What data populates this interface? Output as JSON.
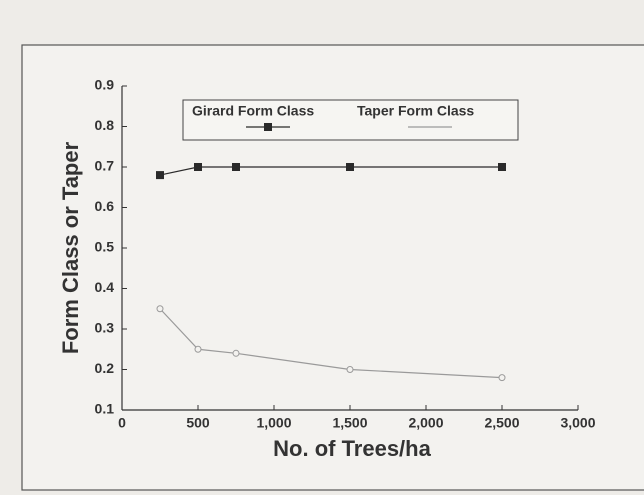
{
  "chart_data": {
    "type": "line",
    "xlabel": "No. of Trees/ha",
    "ylabel": "Form Class or Taper",
    "x": [
      250,
      500,
      750,
      1500,
      2500
    ],
    "series": [
      {
        "name": "Girard Form Class",
        "color": "#2a2a2a",
        "values": [
          0.68,
          0.7,
          0.7,
          0.7,
          0.7
        ]
      },
      {
        "name": "Taper Form Class",
        "color": "#9a9a9a",
        "values": [
          0.35,
          0.25,
          0.24,
          0.2,
          0.18
        ]
      }
    ],
    "xlim": [
      0,
      3000
    ],
    "xticks": [
      0,
      500,
      {
        "value": 1000,
        "label": "1,000"
      },
      {
        "value": 1500,
        "label": "1,500"
      },
      {
        "value": 2000,
        "label": "2,000"
      },
      {
        "value": 2500,
        "label": "2,500"
      },
      {
        "value": 3000,
        "label": "3,000"
      }
    ],
    "ylim": [
      0.1,
      0.9
    ],
    "yticks": [
      0.1,
      0.2,
      0.3,
      0.4,
      0.5,
      0.6,
      0.7,
      0.8,
      0.9
    ],
    "grid": false
  }
}
